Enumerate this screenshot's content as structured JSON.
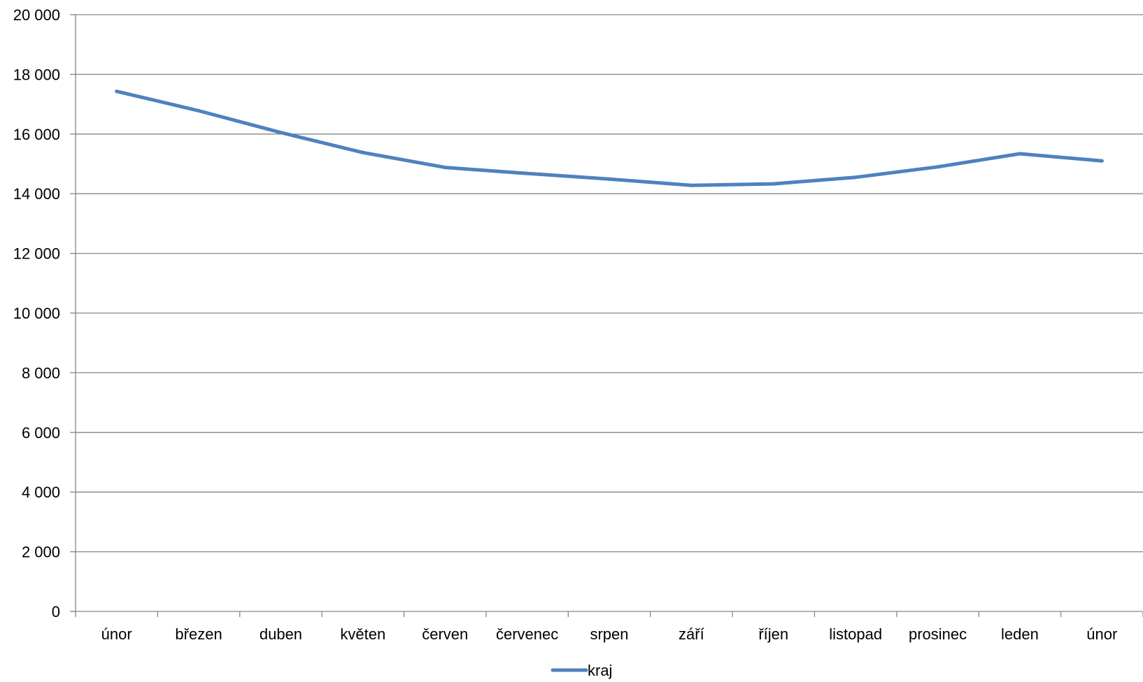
{
  "chart_data": {
    "type": "line",
    "title": "",
    "xlabel": "",
    "ylabel": "",
    "categories": [
      "únor",
      "březen",
      "duben",
      "květen",
      "červen",
      "červenec",
      "srpen",
      "září",
      "říjen",
      "listopad",
      "prosinec",
      "leden",
      "únor"
    ],
    "series": [
      {
        "name": "kraj",
        "color": "#4F81BD",
        "values": [
          17430,
          16780,
          16050,
          15380,
          14880,
          14680,
          14490,
          14280,
          14330,
          14550,
          14900,
          15340,
          15100
        ]
      }
    ],
    "ylim": [
      0,
      20000
    ],
    "yticks": [
      0,
      2000,
      4000,
      6000,
      8000,
      10000,
      12000,
      14000,
      16000,
      18000,
      20000
    ],
    "ytick_labels": [
      "0",
      "2 000",
      "4 000",
      "6 000",
      "8 000",
      "10 000",
      "12 000",
      "14 000",
      "16 000",
      "18 000",
      "20 000"
    ],
    "grid": true,
    "legend_position": "bottom",
    "gridline_color": "#868686",
    "axis_color": "#868686"
  }
}
